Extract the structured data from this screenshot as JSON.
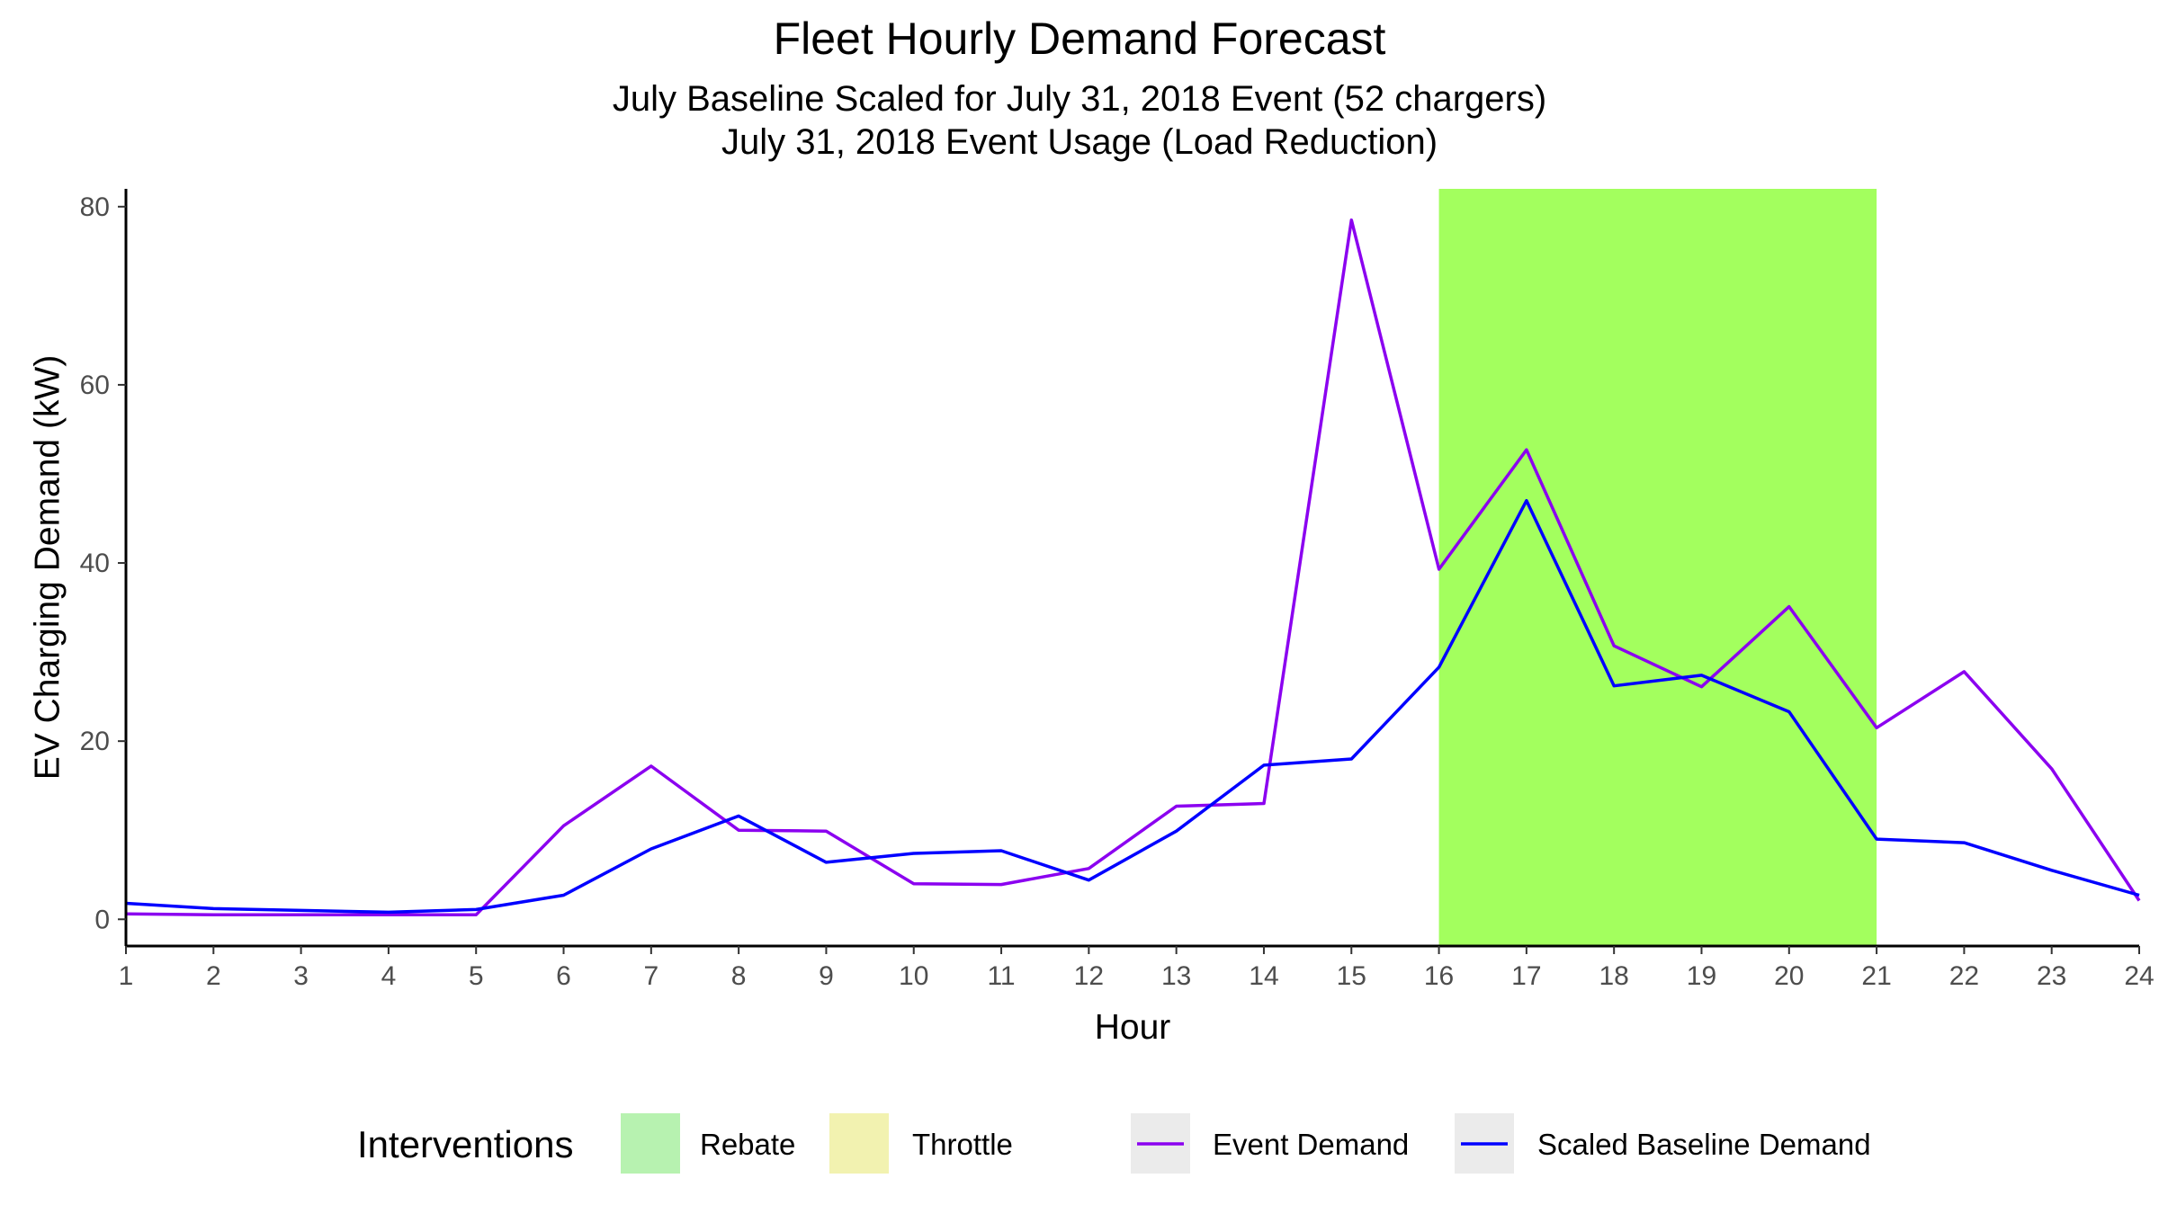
{
  "chart_data": {
    "type": "line",
    "title": "Fleet Hourly Demand Forecast",
    "subtitle_lines": [
      "July Baseline Scaled for July 31, 2018 Event (52 chargers)",
      "July 31, 2018 Event Usage (Load Reduction)"
    ],
    "xlabel": "Hour",
    "ylabel": "EV Charging Demand (kW)",
    "x": [
      1,
      2,
      3,
      4,
      5,
      6,
      7,
      8,
      9,
      10,
      11,
      12,
      13,
      14,
      15,
      16,
      17,
      18,
      19,
      20,
      21,
      22,
      23,
      24
    ],
    "xlim": [
      1,
      24
    ],
    "ylim": [
      -3,
      82
    ],
    "yticks": [
      0,
      20,
      40,
      60,
      80
    ],
    "grid": false,
    "series": [
      {
        "name": "Event Demand",
        "color": "#8b00f0",
        "values": [
          0.6,
          0.5,
          0.5,
          0.5,
          0.5,
          10.5,
          17.2,
          10.0,
          9.9,
          4.0,
          3.9,
          5.7,
          12.7,
          13.0,
          78.5,
          39.3,
          52.7,
          30.7,
          26.1,
          35.1,
          21.5,
          27.8,
          16.9,
          2.1
        ]
      },
      {
        "name": "Scaled Baseline Demand",
        "color": "#0000ff",
        "values": [
          1.8,
          1.2,
          1.0,
          0.8,
          1.1,
          2.7,
          7.9,
          11.6,
          6.4,
          7.4,
          7.7,
          4.4,
          9.9,
          17.3,
          18.0,
          28.3,
          47.0,
          26.2,
          27.4,
          23.3,
          9.0,
          8.6,
          5.5,
          2.7
        ]
      }
    ],
    "shaded_region": {
      "x_start": 16,
      "x_end": 21,
      "label": "Rebate",
      "color": "#a3ff5e"
    },
    "legend": {
      "position": "bottom",
      "title": "Interventions",
      "fill_items": [
        {
          "label": "Rebate",
          "color": "#b7f2b0"
        },
        {
          "label": "Throttle",
          "color": "#f2f2b0"
        }
      ],
      "line_items": [
        {
          "label": "Event Demand",
          "color": "#8b00f0"
        },
        {
          "label": "Scaled Baseline Demand",
          "color": "#0000ff"
        }
      ]
    }
  }
}
